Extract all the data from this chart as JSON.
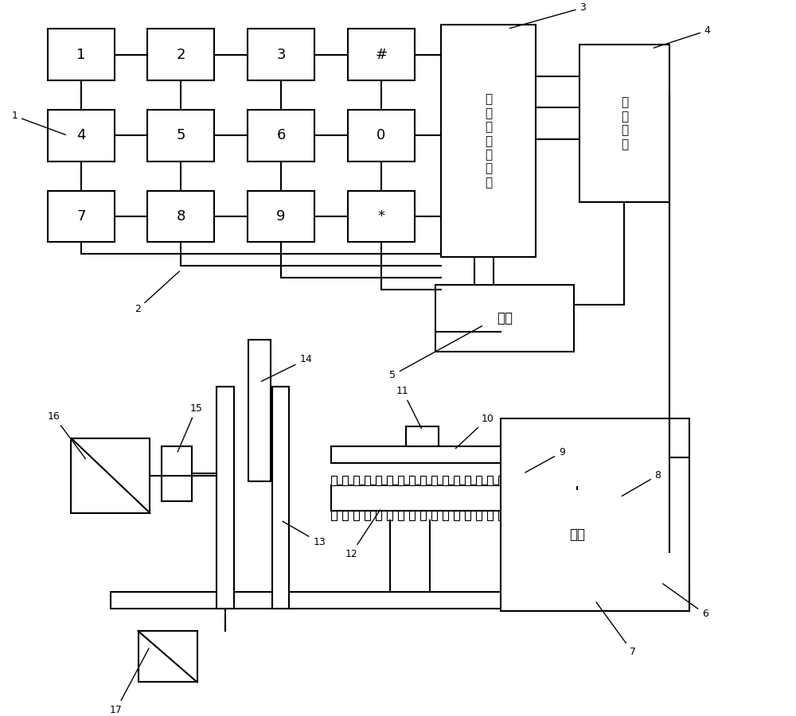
{
  "bg_color": "#ffffff",
  "line_color": "#000000",
  "btn_labels": [
    [
      "1",
      "2",
      "3",
      "#"
    ],
    [
      "4",
      "5",
      "6",
      "0"
    ],
    [
      "7",
      "8",
      "9",
      "*"
    ]
  ],
  "cpu_text": "可\n编\n程\n处\n理\n芯\n片",
  "driver_text": "驱\n动\n芯\n片",
  "power_text": "电源",
  "motor_text": "电机"
}
